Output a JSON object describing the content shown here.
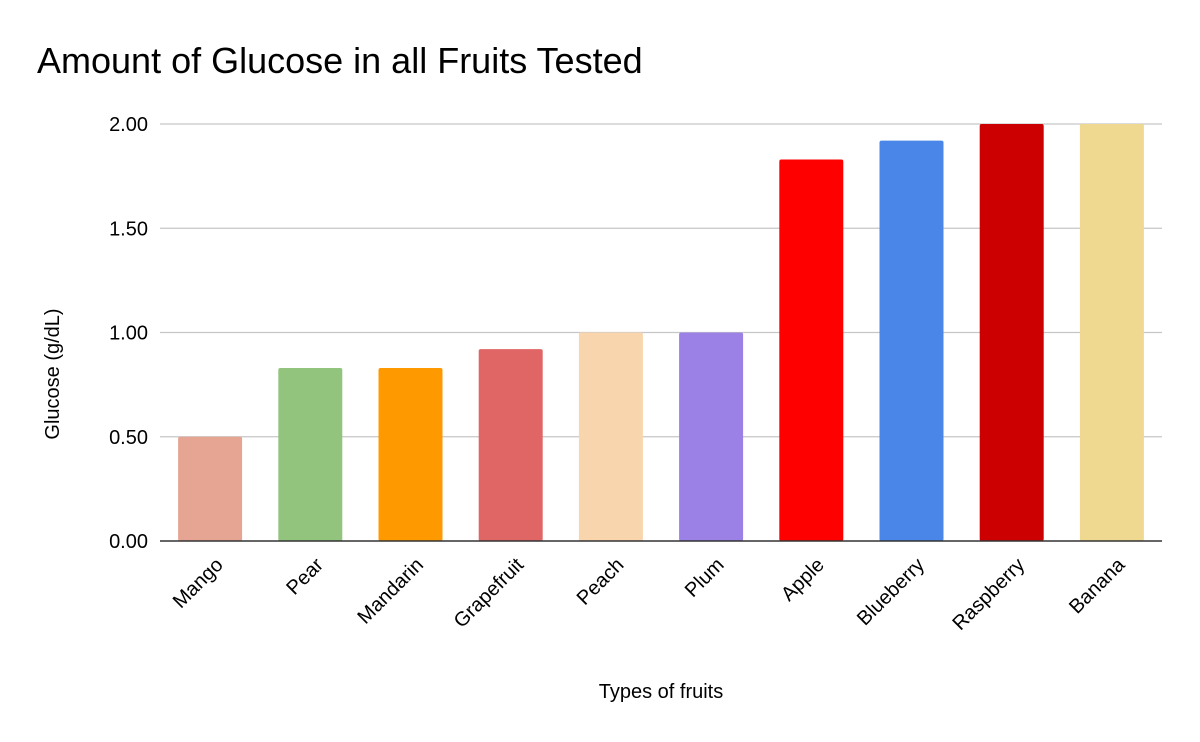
{
  "chart_data": {
    "type": "bar",
    "title": "Amount of Glucose in all Fruits Tested",
    "xlabel": "Types of fruits",
    "ylabel": "Glucose (g/dL)",
    "ylim": [
      0,
      2.0
    ],
    "yticks": [
      "0.00",
      "0.50",
      "1.00",
      "1.50",
      "2.00"
    ],
    "grid": true,
    "legend": "none",
    "categories": [
      "Mango",
      "Pear",
      "Mandarin",
      "Grapefruit",
      "Peach",
      "Plum",
      "Apple",
      "Blueberry",
      "Raspberry",
      "Banana"
    ],
    "values": [
      0.5,
      0.83,
      0.83,
      0.92,
      1.0,
      1.0,
      1.83,
      1.92,
      2.0,
      2.0
    ],
    "colors": [
      "#e6a492",
      "#93c47d",
      "#ff9900",
      "#e06666",
      "#f9d5ae",
      "#9b80e6",
      "#ff0000",
      "#4a86e8",
      "#cc0000",
      "#efd991"
    ]
  }
}
